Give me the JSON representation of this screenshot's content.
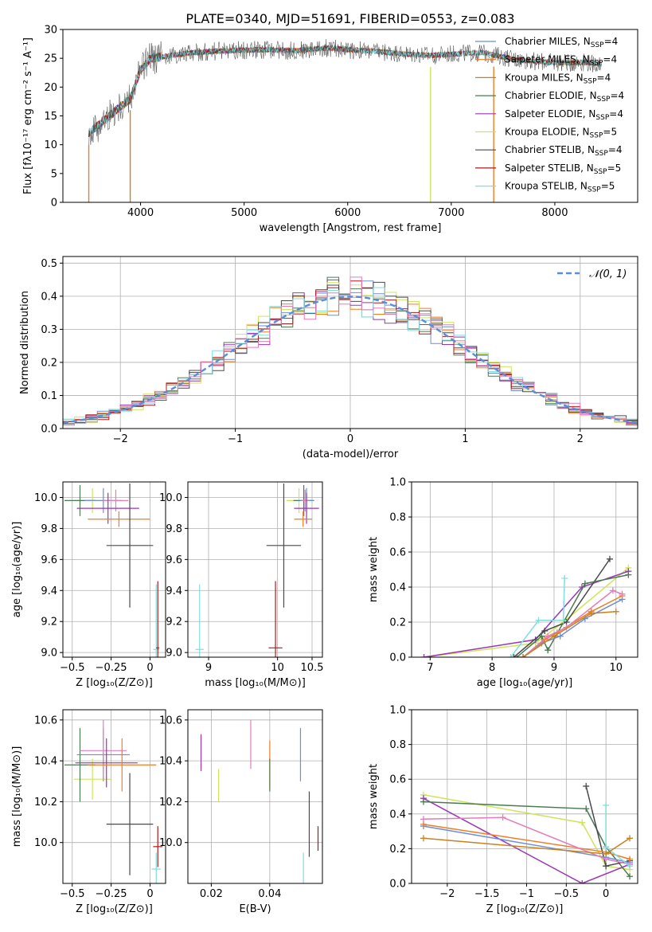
{
  "figure": {
    "title": "PLATE=0340, MJD=51691, FIBERID=0553, z=0.083"
  },
  "colors": {
    "Chabrier MILES": "#6b8ed6",
    "Salpeter MILES": "#f07d24",
    "Kroupa MILES": "#c8821f",
    "Chabrier ELODIE": "#4a7a52",
    "Salpeter ELODIE": "#9a35b5",
    "Kroupa ELODIE": "#cfe45a",
    "Chabrier STELIB": "#4a4a4a",
    "Salpeter STELIB": "#b01818",
    "Kroupa STELIB": "#80dde0",
    "extra_pink": "#e57bbd",
    "normal_curve": "#5a8ed6",
    "grid": "#b0b0b0"
  },
  "chart_data": [
    {
      "id": "spectrum",
      "type": "line",
      "title": "PLATE=0340, MJD=51691, FIBERID=0553, z=0.083",
      "xlabel": "wavelength [Angstrom, rest frame]",
      "ylabel": "Flux [fλ10⁻¹⁷ erg cm⁻² s⁻¹ A⁻¹]",
      "xlim": [
        3250,
        8800
      ],
      "ylim": [
        0,
        30
      ],
      "xticks": [
        4000,
        5000,
        6000,
        7000,
        8000
      ],
      "yticks": [
        0,
        5,
        10,
        15,
        20,
        25,
        30
      ],
      "legend_position": "right",
      "legend": [
        {
          "label": "Chabrier MILES, N",
          "sub": "SSP",
          "suffix": "=4",
          "color": "#6b8ed6"
        },
        {
          "label": "Salpeter MILES, N",
          "sub": "SSP",
          "suffix": "=4",
          "color": "#f07d24"
        },
        {
          "label": "Kroupa MILES, N",
          "sub": "SSP",
          "suffix": "=4",
          "color": "#c8821f"
        },
        {
          "label": "Chabrier ELODIE, N",
          "sub": "SSP",
          "suffix": "=4",
          "color": "#4a7a52"
        },
        {
          "label": "Salpeter ELODIE, N",
          "sub": "SSP",
          "suffix": "=4",
          "color": "#9a35b5"
        },
        {
          "label": "Kroupa ELODIE, N",
          "sub": "SSP",
          "suffix": "=5",
          "color": "#cfe45a"
        },
        {
          "label": "Chabrier STELIB, N",
          "sub": "SSP",
          "suffix": "=4",
          "color": "#4a4a4a"
        },
        {
          "label": "Salpeter STELIB, N",
          "sub": "SSP",
          "suffix": "=5",
          "color": "#b01818"
        },
        {
          "label": "Kroupa STELIB, N",
          "sub": "SSP",
          "suffix": "=5",
          "color": "#80dde0"
        }
      ],
      "continuum_nodes": [
        [
          3500,
          12
        ],
        [
          3700,
          15
        ],
        [
          3900,
          18
        ],
        [
          4000,
          23
        ],
        [
          4100,
          25
        ],
        [
          4300,
          25.5
        ],
        [
          4500,
          26
        ],
        [
          4800,
          26.3
        ],
        [
          5200,
          26.5
        ],
        [
          5500,
          26.3
        ],
        [
          5800,
          26.8
        ],
        [
          6000,
          26.5
        ],
        [
          6300,
          26.2
        ],
        [
          6500,
          25.8
        ],
        [
          6800,
          25.5
        ],
        [
          7000,
          25.7
        ],
        [
          7300,
          26
        ],
        [
          7600,
          24.8
        ],
        [
          8000,
          24.2
        ],
        [
          8300,
          24.3
        ],
        [
          8450,
          24
        ]
      ],
      "dips": [
        [
          3500,
          0
        ],
        [
          3900,
          0
        ],
        [
          6800,
          0
        ],
        [
          7410,
          0
        ]
      ]
    },
    {
      "id": "residual_histogram",
      "type": "bar",
      "xlabel": "(data-model)/error",
      "ylabel": "Normed distribution",
      "xlim": [
        -2.5,
        2.5
      ],
      "ylim": [
        0,
        0.52
      ],
      "xticks": [
        -2,
        -1,
        0,
        1,
        2
      ],
      "yticks": [
        0.0,
        0.1,
        0.2,
        0.3,
        0.4,
        0.5
      ],
      "legend_position": "top-right",
      "legend": [
        {
          "label": "𝒩(0, 1)",
          "color": "#5a8ed6"
        }
      ],
      "bin_width": 0.1,
      "normal_mean": 0,
      "normal_sigma": 1
    },
    {
      "id": "age_vs_Z",
      "type": "scatter",
      "xlabel": "Z [log₁₀(Z/Z⊙)]",
      "ylabel": "age  [log₁₀(age/yr)]",
      "xlim": [
        -0.56,
        0.1
      ],
      "ylim": [
        8.97,
        10.1
      ],
      "xticks": [
        -0.5,
        -0.25,
        0.0
      ],
      "ytick_labels": [
        "9.0",
        "9.2",
        "9.4",
        "9.6",
        "9.8",
        "10.0"
      ],
      "points": [
        {
          "color": "#cfe45a",
          "x": -0.37,
          "y": 9.98,
          "xe": 0.12,
          "ye": 0.08
        },
        {
          "color": "#4a7a52",
          "x": -0.45,
          "y": 9.98,
          "xe": 0.1,
          "ye": 0.1
        },
        {
          "color": "#6b8ed6",
          "x": -0.3,
          "y": 9.98,
          "xe": 0.12,
          "ye": 0.08
        },
        {
          "color": "#e57bbd",
          "x": -0.22,
          "y": 9.98,
          "xe": 0.08,
          "ye": 0.07
        },
        {
          "color": "#9a35b5",
          "x": -0.27,
          "y": 9.93,
          "xe": 0.2,
          "ye": 0.1
        },
        {
          "color": "#f07d24",
          "x": -0.2,
          "y": 9.86,
          "xe": 0.2,
          "ye": 0.05
        },
        {
          "color": "#4a4a4a",
          "x": -0.13,
          "y": 9.69,
          "xe": 0.15,
          "ye": 0.4
        },
        {
          "color": "#80dde0",
          "x": 0.04,
          "y": 9.02,
          "xe": 0.02,
          "ye": 0.42
        },
        {
          "color": "#b01818",
          "x": 0.05,
          "y": 9.03,
          "xe": 0.01,
          "ye": 0.43
        }
      ]
    },
    {
      "id": "age_vs_mass",
      "type": "scatter",
      "xlabel": "mass [log₁₀(M/M⊙)]",
      "ylabel": "",
      "xlim": [
        8.7,
        10.65
      ],
      "ylim": [
        8.97,
        10.1
      ],
      "xticks": [
        9,
        10,
        10.5
      ],
      "ytick_labels": [
        "9.0",
        "9.2",
        "9.4",
        "9.6",
        "9.8",
        "10.0"
      ],
      "points": [
        {
          "color": "#cfe45a",
          "x": 10.31,
          "y": 9.98,
          "xe": 0.18,
          "ye": 0.08
        },
        {
          "color": "#4a7a52",
          "x": 10.38,
          "y": 9.98,
          "xe": 0.15,
          "ye": 0.1
        },
        {
          "color": "#6b8ed6",
          "x": 10.42,
          "y": 9.98,
          "xe": 0.1,
          "ye": 0.08
        },
        {
          "color": "#e57bbd",
          "x": 10.4,
          "y": 9.98,
          "xe": 0.05,
          "ye": 0.07
        },
        {
          "color": "#9a35b5",
          "x": 10.42,
          "y": 9.93,
          "xe": 0.18,
          "ye": 0.1
        },
        {
          "color": "#f07d24",
          "x": 10.37,
          "y": 9.86,
          "xe": 0.13,
          "ye": 0.05
        },
        {
          "color": "#4a4a4a",
          "x": 10.09,
          "y": 9.69,
          "xe": 0.25,
          "ye": 0.4
        },
        {
          "color": "#80dde0",
          "x": 8.87,
          "y": 9.02,
          "xe": 0.06,
          "ye": 0.42
        },
        {
          "color": "#b01818",
          "x": 9.97,
          "y": 9.03,
          "xe": 0.1,
          "ye": 0.43
        }
      ]
    },
    {
      "id": "weight_vs_age",
      "type": "line",
      "xlabel": "age  [log₁₀(age/yr)]",
      "ylabel": "mass weight",
      "xlim": [
        6.7,
        10.35
      ],
      "ylim": [
        0,
        1.0
      ],
      "xticks": [
        7,
        8,
        9,
        10
      ],
      "yticks": [
        0.0,
        0.2,
        0.4,
        0.6,
        0.8,
        1.0
      ],
      "series": [
        {
          "color": "#cfe45a",
          "x": [
            6.9,
            8.7,
            9.15,
            10.2
          ],
          "y": [
            0.0,
            0.08,
            0.2,
            0.51
          ]
        },
        {
          "color": "#9a35b5",
          "x": [
            6.9,
            8.7,
            9.45,
            10.2
          ],
          "y": [
            0.0,
            0.1,
            0.4,
            0.49
          ]
        },
        {
          "color": "#4a4a4a",
          "x": [
            8.35,
            8.85,
            9.2,
            9.9
          ],
          "y": [
            0.0,
            0.15,
            0.2,
            0.56
          ]
        },
        {
          "color": "#4a7a52",
          "x": [
            8.4,
            8.8,
            8.9,
            9.5,
            10.2
          ],
          "y": [
            0.0,
            0.12,
            0.04,
            0.42,
            0.47
          ]
        },
        {
          "color": "#6b8ed6",
          "x": [
            8.5,
            8.8,
            9.1,
            9.5,
            10.1
          ],
          "y": [
            0.0,
            0.08,
            0.12,
            0.22,
            0.33
          ]
        },
        {
          "color": "#f07d24",
          "x": [
            8.5,
            8.85,
            9.05,
            9.6,
            10.1
          ],
          "y": [
            0.0,
            0.1,
            0.14,
            0.26,
            0.35
          ]
        },
        {
          "color": "#e57bbd",
          "x": [
            8.5,
            8.9,
            9.2,
            9.95,
            10.1
          ],
          "y": [
            0.0,
            0.12,
            0.17,
            0.38,
            0.36
          ]
        },
        {
          "color": "#80dde0",
          "x": [
            8.3,
            8.75,
            9.15,
            9.17
          ],
          "y": [
            0.0,
            0.21,
            0.21,
            0.45
          ]
        },
        {
          "color": "#c8821f",
          "x": [
            8.5,
            9.0,
            9.6,
            10.0
          ],
          "y": [
            0.0,
            0.12,
            0.25,
            0.26
          ]
        }
      ]
    },
    {
      "id": "mass_vs_Z",
      "type": "scatter",
      "xlabel": "Z [log₁₀(Z/Z⊙)]",
      "ylabel": "mass [log₁₀(M/M⊙)]",
      "xlim": [
        -0.56,
        0.1
      ],
      "ylim": [
        9.8,
        10.65
      ],
      "xticks": [
        -0.5,
        -0.25,
        0.0
      ],
      "ytick_labels": [
        "10.0",
        "10.2",
        "10.4",
        "10.6"
      ],
      "points": [
        {
          "color": "#cfe45a",
          "x": -0.37,
          "y": 10.31,
          "xe": 0.12,
          "ye": 0.1
        },
        {
          "color": "#4a7a52",
          "x": -0.45,
          "y": 10.38,
          "xe": 0.1,
          "ye": 0.18
        },
        {
          "color": "#6b8ed6",
          "x": -0.3,
          "y": 10.43,
          "xe": 0.17,
          "ye": 0.13
        },
        {
          "color": "#e57bbd",
          "x": -0.3,
          "y": 10.45,
          "xe": 0.15,
          "ye": 0.15
        },
        {
          "color": "#9a35b5",
          "x": -0.28,
          "y": 10.39,
          "xe": 0.2,
          "ye": 0.12
        },
        {
          "color": "#f07d24",
          "x": -0.18,
          "y": 10.38,
          "xe": 0.22,
          "ye": 0.13
        },
        {
          "color": "#4a4a4a",
          "x": -0.13,
          "y": 10.09,
          "xe": 0.15,
          "ye": 0.25
        },
        {
          "color": "#80dde0",
          "x": 0.04,
          "y": 9.87,
          "xe": 0.03,
          "ye": 0.08
        },
        {
          "color": "#b01818",
          "x": 0.05,
          "y": 9.98,
          "xe": 0.03,
          "ye": 0.1
        }
      ]
    },
    {
      "id": "mass_vs_EBV",
      "type": "scatter",
      "xlabel": "E(B-V)",
      "ylabel": "",
      "xlim": [
        0.012,
        0.058
      ],
      "ylim": [
        9.8,
        10.65
      ],
      "xticks": [
        0.02,
        0.04
      ],
      "ytick_labels": [
        "10.0",
        "10.2",
        "10.4",
        "10.6"
      ],
      "points": [
        {
          "color": "#9a35b5",
          "x": 0.0165,
          "y": 10.44,
          "xe": 0,
          "ye": 0.09
        },
        {
          "color": "#cfe45a",
          "x": 0.0225,
          "y": 10.28,
          "xe": 0,
          "ye": 0.08
        },
        {
          "color": "#e57bbd",
          "x": 0.0335,
          "y": 10.48,
          "xe": 0,
          "ye": 0.12
        },
        {
          "color": "#f07d24",
          "x": 0.04,
          "y": 10.38,
          "xe": 0,
          "ye": 0.12
        },
        {
          "color": "#4a7a52",
          "x": 0.04,
          "y": 10.33,
          "xe": 0,
          "ye": 0.08
        },
        {
          "color": "#6b8ed6",
          "x": 0.0505,
          "y": 10.43,
          "xe": 0,
          "ye": 0.13
        },
        {
          "color": "#80dde0",
          "x": 0.0515,
          "y": 9.87,
          "xe": 0,
          "ye": 0.08
        },
        {
          "color": "#4a4a4a",
          "x": 0.0535,
          "y": 10.09,
          "xe": 0,
          "ye": 0.16
        },
        {
          "color": "#b01818",
          "x": 0.0565,
          "y": 10.02,
          "xe": 0,
          "ye": 0.06
        }
      ]
    },
    {
      "id": "weight_vs_Z",
      "type": "line",
      "xlabel": "Z [log₁₀(Z/Z⊙)]",
      "ylabel": "mass weight",
      "xlim": [
        -2.45,
        0.4
      ],
      "ylim": [
        0,
        1.0
      ],
      "xticks": [
        -2.0,
        -1.5,
        -1.0,
        -0.5,
        0.0
      ],
      "yticks": [
        0.0,
        0.2,
        0.4,
        0.6,
        0.8,
        1.0
      ],
      "series": [
        {
          "color": "#cfe45a",
          "x": [
            -2.3,
            -0.3,
            0.0,
            0.3
          ],
          "y": [
            0.51,
            0.35,
            0.1,
            0.08
          ]
        },
        {
          "color": "#9a35b5",
          "x": [
            -2.3,
            -0.3,
            0.3
          ],
          "y": [
            0.49,
            0.0,
            0.11
          ]
        },
        {
          "color": "#4a7a52",
          "x": [
            -2.3,
            -0.25,
            0.0,
            0.3
          ],
          "y": [
            0.47,
            0.43,
            0.21,
            0.04
          ]
        },
        {
          "color": "#4a4a4a",
          "x": [
            -0.25,
            0.0,
            0.3
          ],
          "y": [
            0.56,
            0.1,
            0.13
          ]
        },
        {
          "color": "#6b8ed6",
          "x": [
            -2.3,
            0.0,
            0.3
          ],
          "y": [
            0.33,
            0.15,
            0.12
          ]
        },
        {
          "color": "#f07d24",
          "x": [
            -2.3,
            0.0,
            0.3
          ],
          "y": [
            0.34,
            0.18,
            0.14
          ]
        },
        {
          "color": "#e57bbd",
          "x": [
            -2.3,
            -1.3,
            0.0,
            0.3
          ],
          "y": [
            0.37,
            0.38,
            0.14,
            0.11
          ]
        },
        {
          "color": "#80dde0",
          "x": [
            0.0,
            0.0,
            0.3
          ],
          "y": [
            0.45,
            0.21,
            0.1
          ]
        },
        {
          "color": "#c8821f",
          "x": [
            -2.3,
            0.0,
            0.3
          ],
          "y": [
            0.26,
            0.17,
            0.26
          ]
        }
      ]
    }
  ]
}
